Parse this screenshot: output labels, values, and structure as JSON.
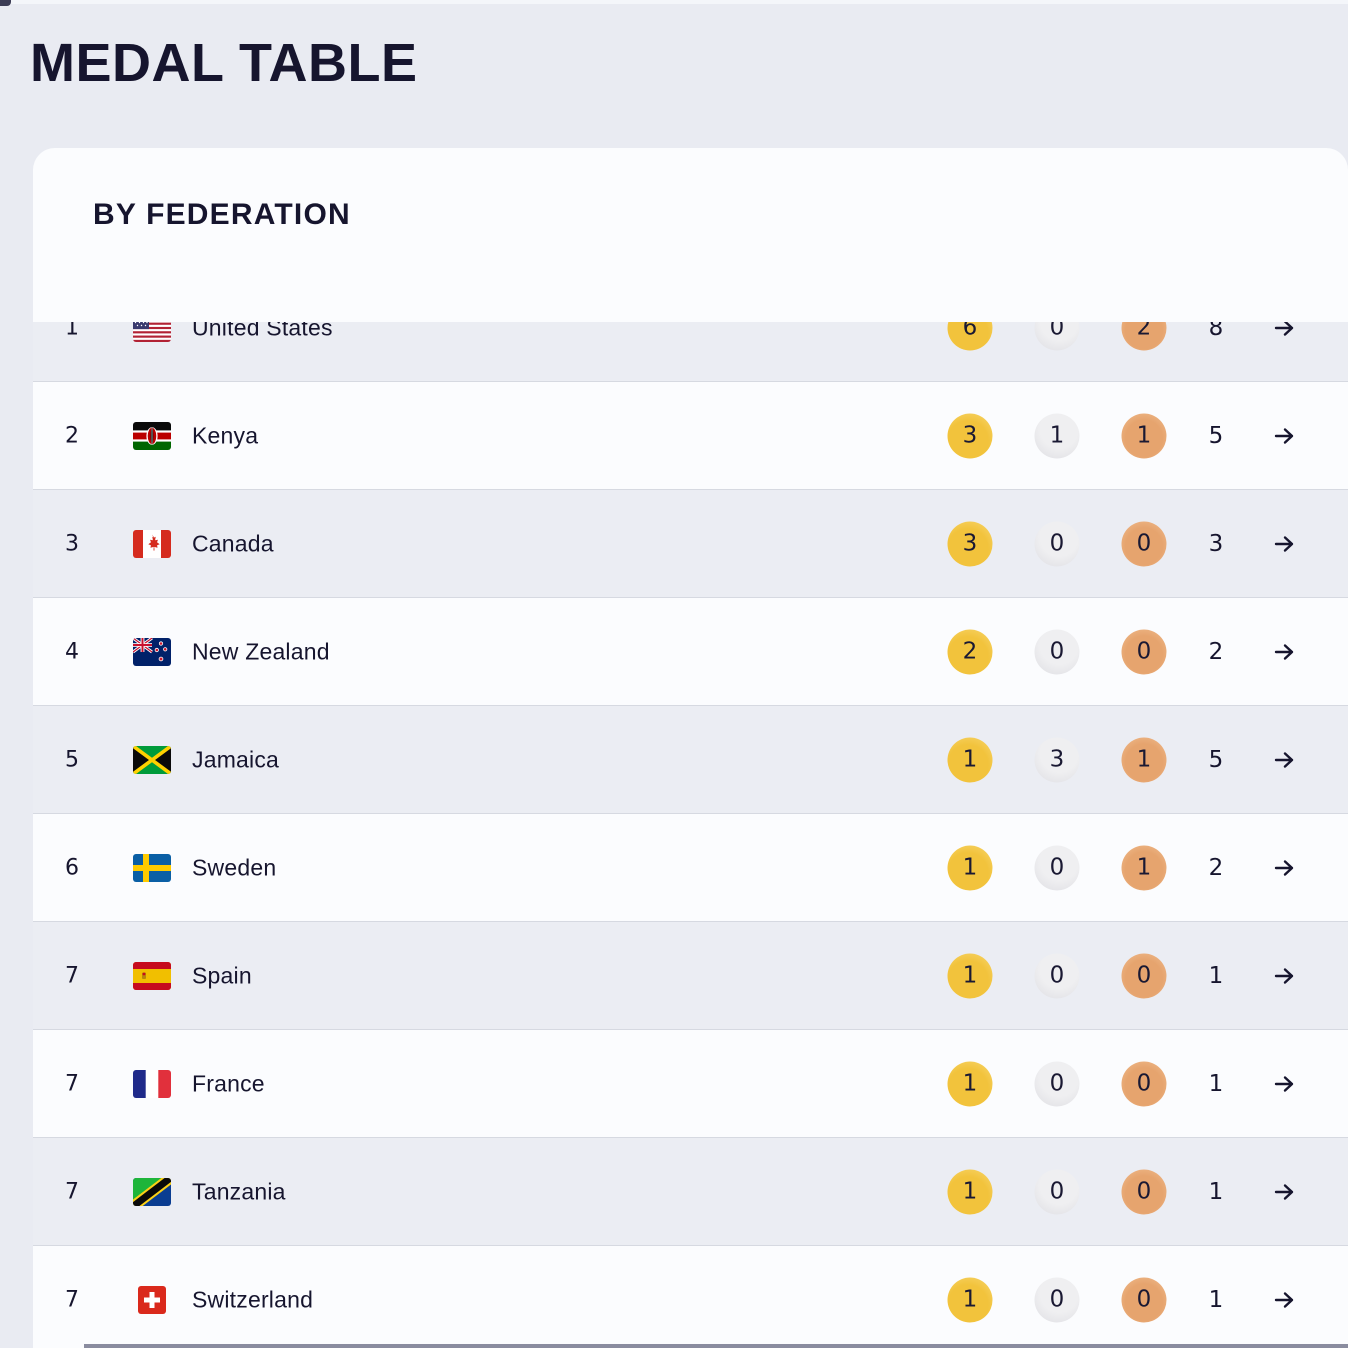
{
  "page": {
    "title": "MEDAL TABLE",
    "background_color": "#e9ebf2",
    "text_color": "#16152e"
  },
  "card": {
    "heading": "BY FEDERATION"
  },
  "table": {
    "columns": [
      "rank",
      "flag",
      "federation",
      "gold",
      "silver",
      "bronze",
      "total",
      "details-arrow"
    ],
    "medal_colors": {
      "gold": "#f3c440",
      "silver": "#e4e4e8",
      "bronze": "#e6a470"
    },
    "arrow_icon": "arrow-right-icon",
    "rows": [
      {
        "rank": "1",
        "country": "United States",
        "flag_icon": "us-flag-icon",
        "gold": "6",
        "silver": "0",
        "bronze": "2",
        "total": "8"
      },
      {
        "rank": "2",
        "country": "Kenya",
        "flag_icon": "kenya-flag-icon",
        "gold": "3",
        "silver": "1",
        "bronze": "1",
        "total": "5"
      },
      {
        "rank": "3",
        "country": "Canada",
        "flag_icon": "canada-flag-icon",
        "gold": "3",
        "silver": "0",
        "bronze": "0",
        "total": "3"
      },
      {
        "rank": "4",
        "country": "New Zealand",
        "flag_icon": "new-zealand-flag-icon",
        "gold": "2",
        "silver": "0",
        "bronze": "0",
        "total": "2"
      },
      {
        "rank": "5",
        "country": "Jamaica",
        "flag_icon": "jamaica-flag-icon",
        "gold": "1",
        "silver": "3",
        "bronze": "1",
        "total": "5"
      },
      {
        "rank": "6",
        "country": "Sweden",
        "flag_icon": "sweden-flag-icon",
        "gold": "1",
        "silver": "0",
        "bronze": "1",
        "total": "2"
      },
      {
        "rank": "7",
        "country": "Spain",
        "flag_icon": "spain-flag-icon",
        "gold": "1",
        "silver": "0",
        "bronze": "0",
        "total": "1"
      },
      {
        "rank": "7",
        "country": "France",
        "flag_icon": "france-flag-icon",
        "gold": "1",
        "silver": "0",
        "bronze": "0",
        "total": "1"
      },
      {
        "rank": "7",
        "country": "Tanzania",
        "flag_icon": "tanzania-flag-icon",
        "gold": "1",
        "silver": "0",
        "bronze": "0",
        "total": "1"
      },
      {
        "rank": "7",
        "country": "Switzerland",
        "flag_icon": "switzerland-flag-icon",
        "gold": "1",
        "silver": "0",
        "bronze": "0",
        "total": "1"
      }
    ]
  }
}
